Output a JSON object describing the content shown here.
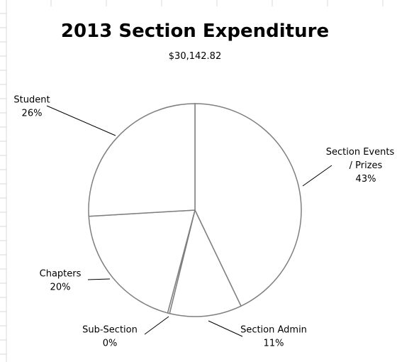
{
  "chart_data": {
    "type": "pie",
    "title": "2013 Section Expenditure",
    "subtitle": "$30,142.82",
    "slices": [
      {
        "label": "Section Events / Prizes",
        "percent_label": "43%",
        "value": 43
      },
      {
        "label": "Section Admin",
        "percent_label": "11%",
        "value": 11
      },
      {
        "label": "Sub-Section",
        "percent_label": "0%",
        "value": 0.3
      },
      {
        "label": "Chapters",
        "percent_label": "20%",
        "value": 20
      },
      {
        "label": "Student",
        "percent_label": "26%",
        "value": 26
      }
    ],
    "colors": {
      "fill": "#ffffff",
      "stroke": "#7f7f7f",
      "gridline": "#d9d9d9",
      "text": "#000000"
    }
  }
}
